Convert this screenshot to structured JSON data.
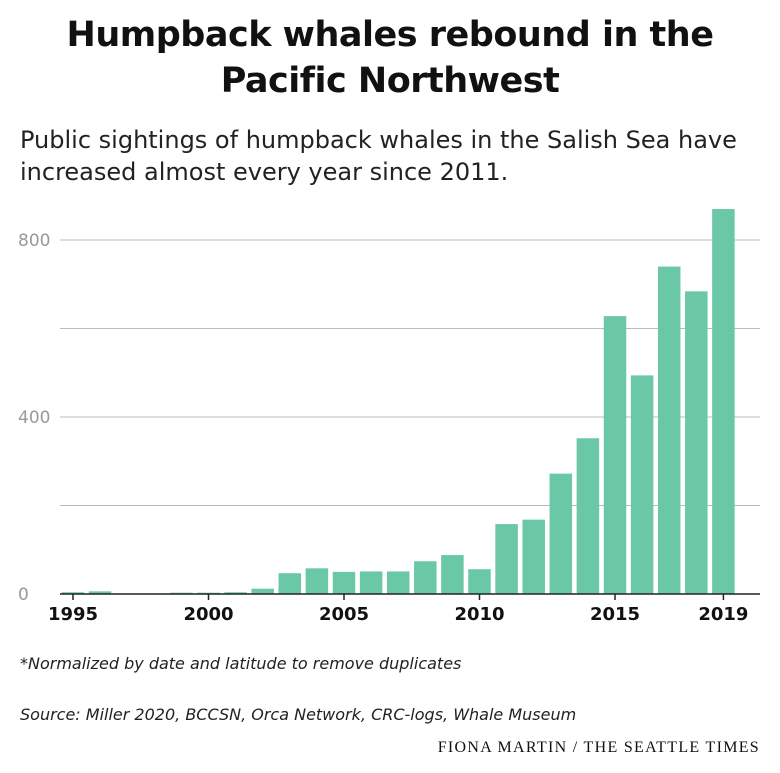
{
  "title_lines": [
    "Humpback whales rebound in the",
    "Pacific Northwest"
  ],
  "subtitle_lines": [
    "Public sightings of humpback whales in the Salish Sea have",
    "increased almost every year since 2011."
  ],
  "footnote": "*Normalized by date and latitude to remove duplicates",
  "source": "Source: Miller 2020, BCCSN, Orca Network, CRC-logs, Whale Museum",
  "credit": "FIONA MARTIN / THE SEATTLE TIMES",
  "colors": {
    "bar": "#6ac8a6",
    "grid": "#bbbbbb",
    "axis": "#222222",
    "ytick": "#999999"
  },
  "chart_data": {
    "type": "bar",
    "title": "Humpback whales rebound in the Pacific Northwest",
    "categories": [
      1995,
      1996,
      1997,
      1998,
      1999,
      2000,
      2001,
      2002,
      2003,
      2004,
      2005,
      2006,
      2007,
      2008,
      2009,
      2010,
      2011,
      2012,
      2013,
      2014,
      2015,
      2016,
      2017,
      2018,
      2019
    ],
    "values": [
      4,
      6,
      0,
      0,
      3,
      3,
      4,
      12,
      47,
      58,
      50,
      51,
      51,
      74,
      88,
      56,
      158,
      168,
      272,
      352,
      628,
      494,
      740,
      684,
      870
    ],
    "x_tick_labels": [
      "1995",
      "2000",
      "2005",
      "2010",
      "2015",
      "2019"
    ],
    "y_ticks": [
      0,
      400,
      800
    ],
    "y_gridlines": [
      200,
      400,
      600,
      800
    ],
    "ylim": [
      0,
      880
    ],
    "xlabel": "",
    "ylabel": "",
    "grid": true,
    "legend": "none"
  }
}
